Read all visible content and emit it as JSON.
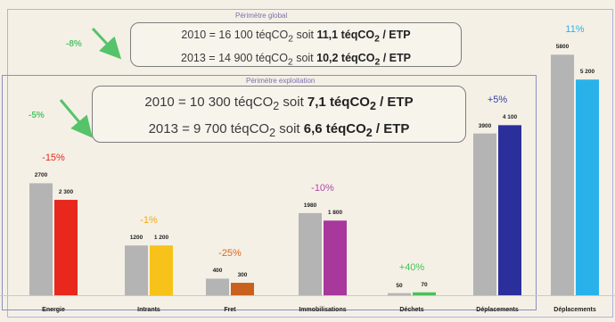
{
  "perimeter_global": {
    "title": "Périmètre global",
    "line_2010_pre": "2010 = 16 100 téqCO",
    "line_2010_mid": " soit ",
    "line_2010_bold": "11,1 téqCO",
    "line_2010_post": " / ETP",
    "line_2013_pre": "2013 = 14 900 téqCO",
    "line_2013_mid": " soit ",
    "line_2013_bold": "10,2 téqCO",
    "line_2013_post": " / ETP",
    "change": "-8%"
  },
  "perimeter_exploitation": {
    "title": "Périmètre exploitation",
    "line_2010_pre": "2010 = 10 300 téqCO",
    "line_2010_mid": " soit ",
    "line_2010_bold": "7,1 téqCO",
    "line_2010_post": " / ETP",
    "line_2013_pre": "2013 = 9 700 téqCO",
    "line_2013_mid": " soit ",
    "line_2013_bold": "6,6 téqCO",
    "line_2013_post": " / ETP",
    "change": "-5%"
  },
  "subscript": "2",
  "colors": {
    "bar_2010": "#b4b4b4",
    "accent_green": "#55c36a",
    "frame_blue": "#8a8fc4"
  },
  "chart_data": {
    "type": "bar",
    "categories": [
      "Energie",
      "Intrants",
      "Fret",
      "Immobilisations",
      "Déchets",
      "Déplacements",
      "Déplacements"
    ],
    "series": [
      {
        "values": [
          2700,
          1200,
          400,
          1980,
          50,
          3900,
          5800
        ]
      },
      {
        "values": [
          2300,
          1200,
          300,
          1800,
          70,
          4100,
          5200
        ]
      }
    ],
    "value_labels_2010": [
      "2700",
      "1200",
      "400",
      "1980",
      "50",
      "3900",
      "5800"
    ],
    "value_labels_2013": [
      "2 300",
      "1 200",
      "300",
      "1 800",
      "70",
      "4 100",
      "5 200"
    ],
    "changes": [
      "-15%",
      "-1%",
      "-25%",
      "-10%",
      "+40%",
      "+5%",
      "11%"
    ],
    "colors_2013": [
      "#e8271d",
      "#f7c31a",
      "#c9601d",
      "#a8389b",
      "#46c25a",
      "#2b2f9c",
      "#29b2ea"
    ],
    "change_colors": [
      "#e8271d",
      "#f2a91c",
      "#e0641e",
      "#b04aa5",
      "#46c25a",
      "#3a3fa6",
      "#29b2ea"
    ],
    "ylim": [
      0,
      6000
    ]
  }
}
